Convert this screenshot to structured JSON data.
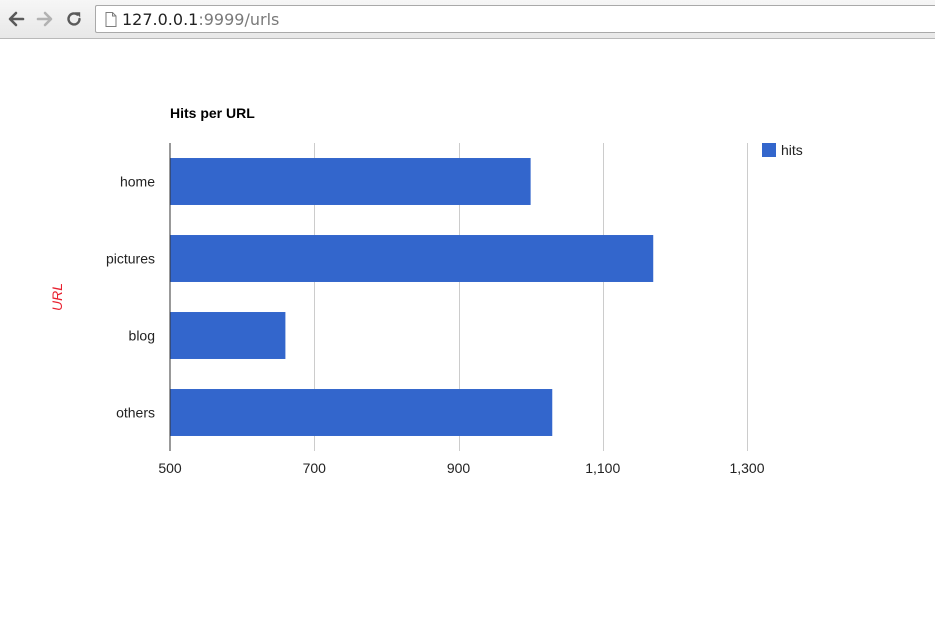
{
  "browser": {
    "url_host": "127.0.0.1",
    "url_path": ":9999/urls",
    "icons": {
      "back": "arrow-left-icon",
      "forward": "arrow-right-icon",
      "reload": "reload-icon",
      "page": "page-icon"
    }
  },
  "chart_data": {
    "type": "bar",
    "orientation": "horizontal",
    "title": "Hits per URL",
    "ylabel": "URL",
    "xlabel": "",
    "categories": [
      "home",
      "pictures",
      "blog",
      "others"
    ],
    "series": [
      {
        "name": "hits",
        "values": [
          1000,
          1170,
          660,
          1030
        ],
        "color": "#3366cc"
      }
    ],
    "xlim": [
      500,
      1300
    ],
    "xticks": [
      500,
      700,
      900,
      1100,
      1300
    ],
    "xtick_labels": [
      "500",
      "700",
      "900",
      "1,100",
      "1,300"
    ],
    "grid": true,
    "legend_position": "right",
    "axis_title_color": "#e8202f"
  }
}
